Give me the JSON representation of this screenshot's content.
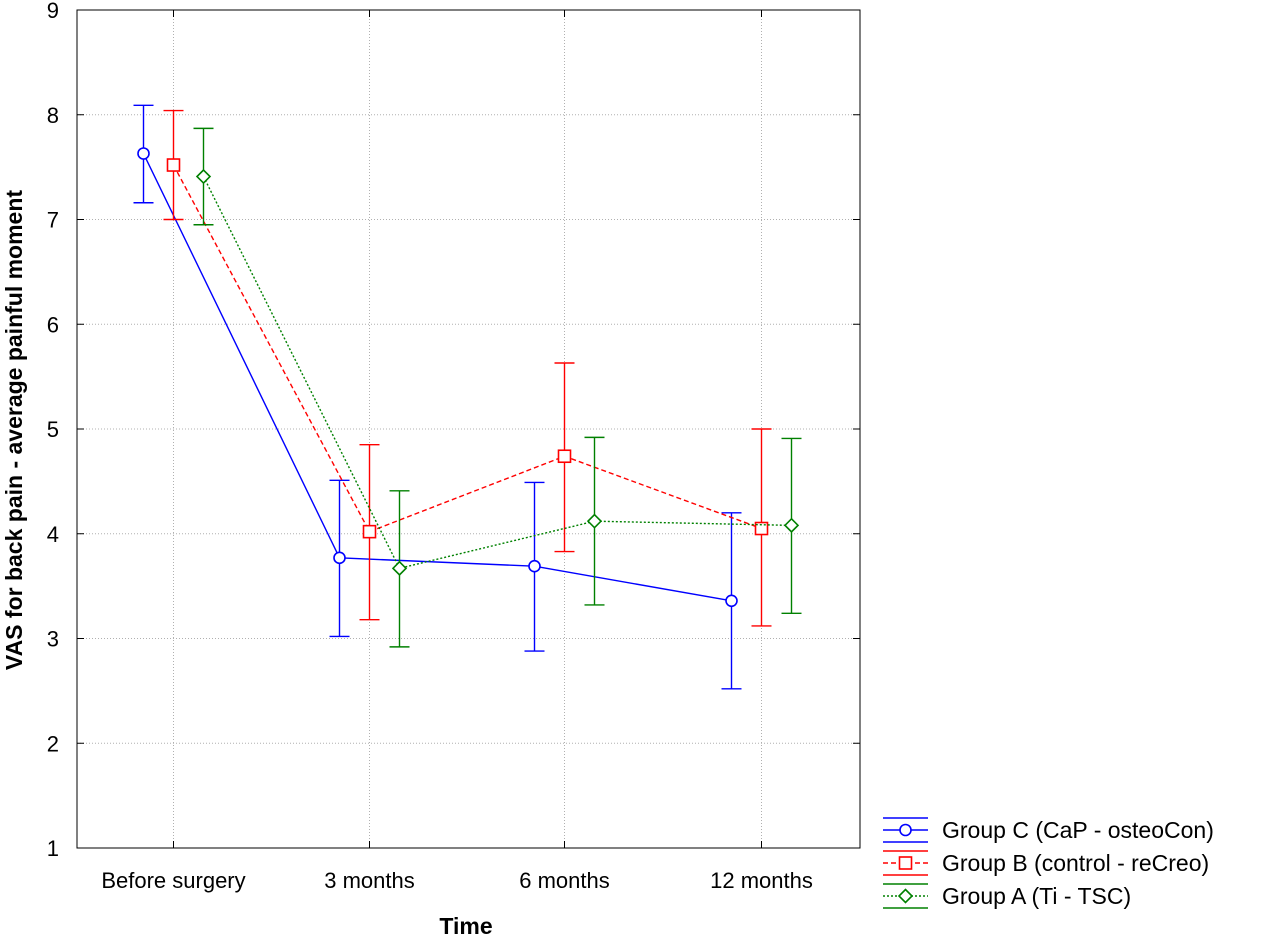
{
  "chart_data": {
    "type": "line",
    "title": "",
    "xlabel": "Time",
    "ylabel": "VAS for back pain - average painful moment",
    "categories": [
      "Before surgery",
      "3 months",
      "6 months",
      "12 months"
    ],
    "ylim": [
      1,
      9
    ],
    "yticks": [
      1,
      2,
      3,
      4,
      5,
      6,
      7,
      8,
      9
    ],
    "grid": true,
    "legend_position": "bottom-right",
    "series": [
      {
        "name": "Group C (CaP - osteoCon)",
        "color": "#0000ff",
        "line_style": "solid",
        "marker": "circle",
        "values": [
          7.63,
          3.77,
          3.69,
          3.36
        ],
        "error_low": [
          7.16,
          3.02,
          2.88,
          2.52
        ],
        "error_high": [
          8.09,
          4.51,
          4.49,
          4.2
        ]
      },
      {
        "name": "Group B (control - reCreo)",
        "color": "#ff0000",
        "line_style": "dashed",
        "marker": "square",
        "values": [
          7.52,
          4.02,
          4.74,
          4.05
        ],
        "error_low": [
          7.0,
          3.18,
          3.83,
          3.12
        ],
        "error_high": [
          8.04,
          4.85,
          5.63,
          5.0
        ]
      },
      {
        "name": "Group A (Ti - TSC)",
        "color": "#008000",
        "line_style": "dotted",
        "marker": "diamond",
        "values": [
          7.41,
          3.67,
          4.12,
          4.08
        ],
        "error_low": [
          6.95,
          2.92,
          3.32,
          3.24
        ],
        "error_high": [
          7.87,
          4.41,
          4.92,
          4.91
        ]
      }
    ]
  }
}
